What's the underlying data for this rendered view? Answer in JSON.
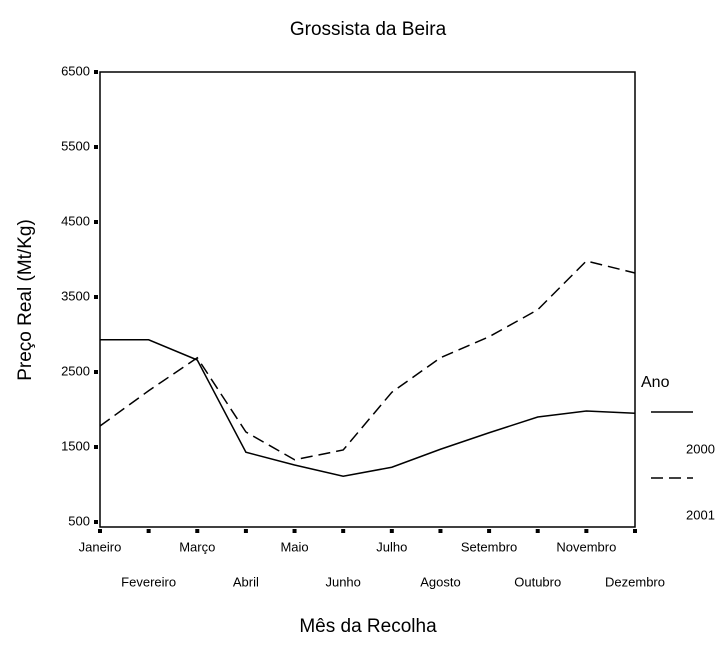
{
  "chart_data": {
    "type": "line",
    "title": "Grossista da Beira",
    "x_label": "Mês da Recolha",
    "y_label": "Preço Real (Mt/Kg)",
    "categories": [
      "Janeiro",
      "Fevereiro",
      "Março",
      "Abril",
      "Maio",
      "Junho",
      "Julho",
      "Agosto",
      "Setembro",
      "Outubro",
      "Novembro",
      "Dezembro"
    ],
    "series": [
      {
        "name": "2000",
        "color": "#000000",
        "style": "solid",
        "values": [
          2930,
          2930,
          2660,
          1430,
          1260,
          1110,
          1230,
          1470,
          1690,
          1900,
          1980,
          1950
        ]
      },
      {
        "name": "2001",
        "color": "#000000",
        "style": "dashed",
        "values": [
          1780,
          2250,
          2690,
          1700,
          1330,
          1460,
          2230,
          2690,
          2970,
          3330,
          3980,
          3820
        ]
      }
    ],
    "ylim": [
      500,
      6500
    ],
    "yticks": [
      500,
      1500,
      2500,
      3500,
      4500,
      5500,
      6500
    ],
    "legend_title": "Ano",
    "legend_position": "right"
  }
}
